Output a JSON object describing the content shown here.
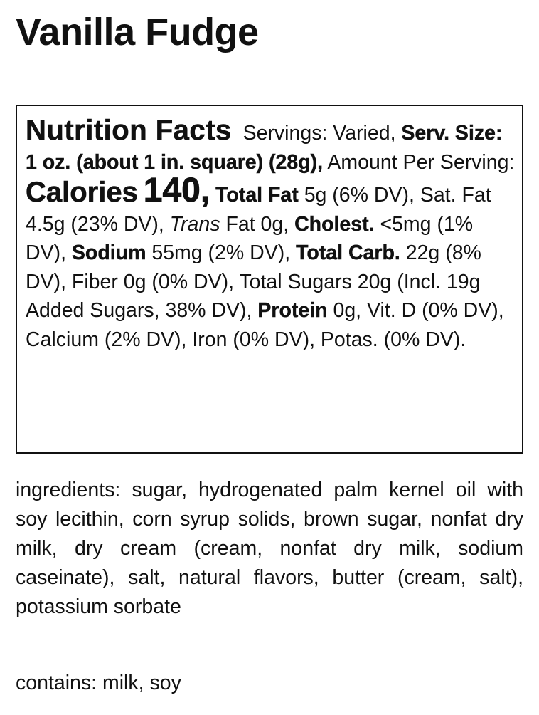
{
  "title": "Vanilla Fudge",
  "nutrition": {
    "heading": "Nutrition Facts",
    "servings": "Servings: Varied,",
    "serving_size": "Serv. Size: 1 oz. (about 1 in. square) (28g),",
    "amount_per_serving": "Amount Per Serving:",
    "calories_label": "Calories",
    "calories_value": "140,",
    "total_fat_label": "Total Fat",
    "total_fat_value": "5g (6% DV), Sat. Fat 4.5g (23% DV),",
    "trans_label": "Trans",
    "trans_value": "Fat 0g,",
    "cholest_label": "Cholest.",
    "cholest_value": "<5mg (1% DV),",
    "sodium_label": "Sodium",
    "sodium_value": "55mg (2% DV),",
    "carb_label": "Total Carb.",
    "carb_value": "22g (8% DV), Fiber 0g (0% DV), Total Sugars 20g (Incl. 19g Added Sugars, 38% DV),",
    "protein_label": "Protein",
    "protein_value": "0g, Vit. D (0% DV), Calcium (2% DV), Iron (0% DV), Potas. (0% DV)."
  },
  "ingredients": "ingredients: sugar, hydrogenated palm kernel oil with soy lecithin, corn syrup solids, brown sugar, nonfat dry milk, dry cream (cream, nonfat dry milk, sodium caseinate), salt, natural flavors, butter (cream, salt), potassium sorbate",
  "contains": "contains: milk, soy"
}
